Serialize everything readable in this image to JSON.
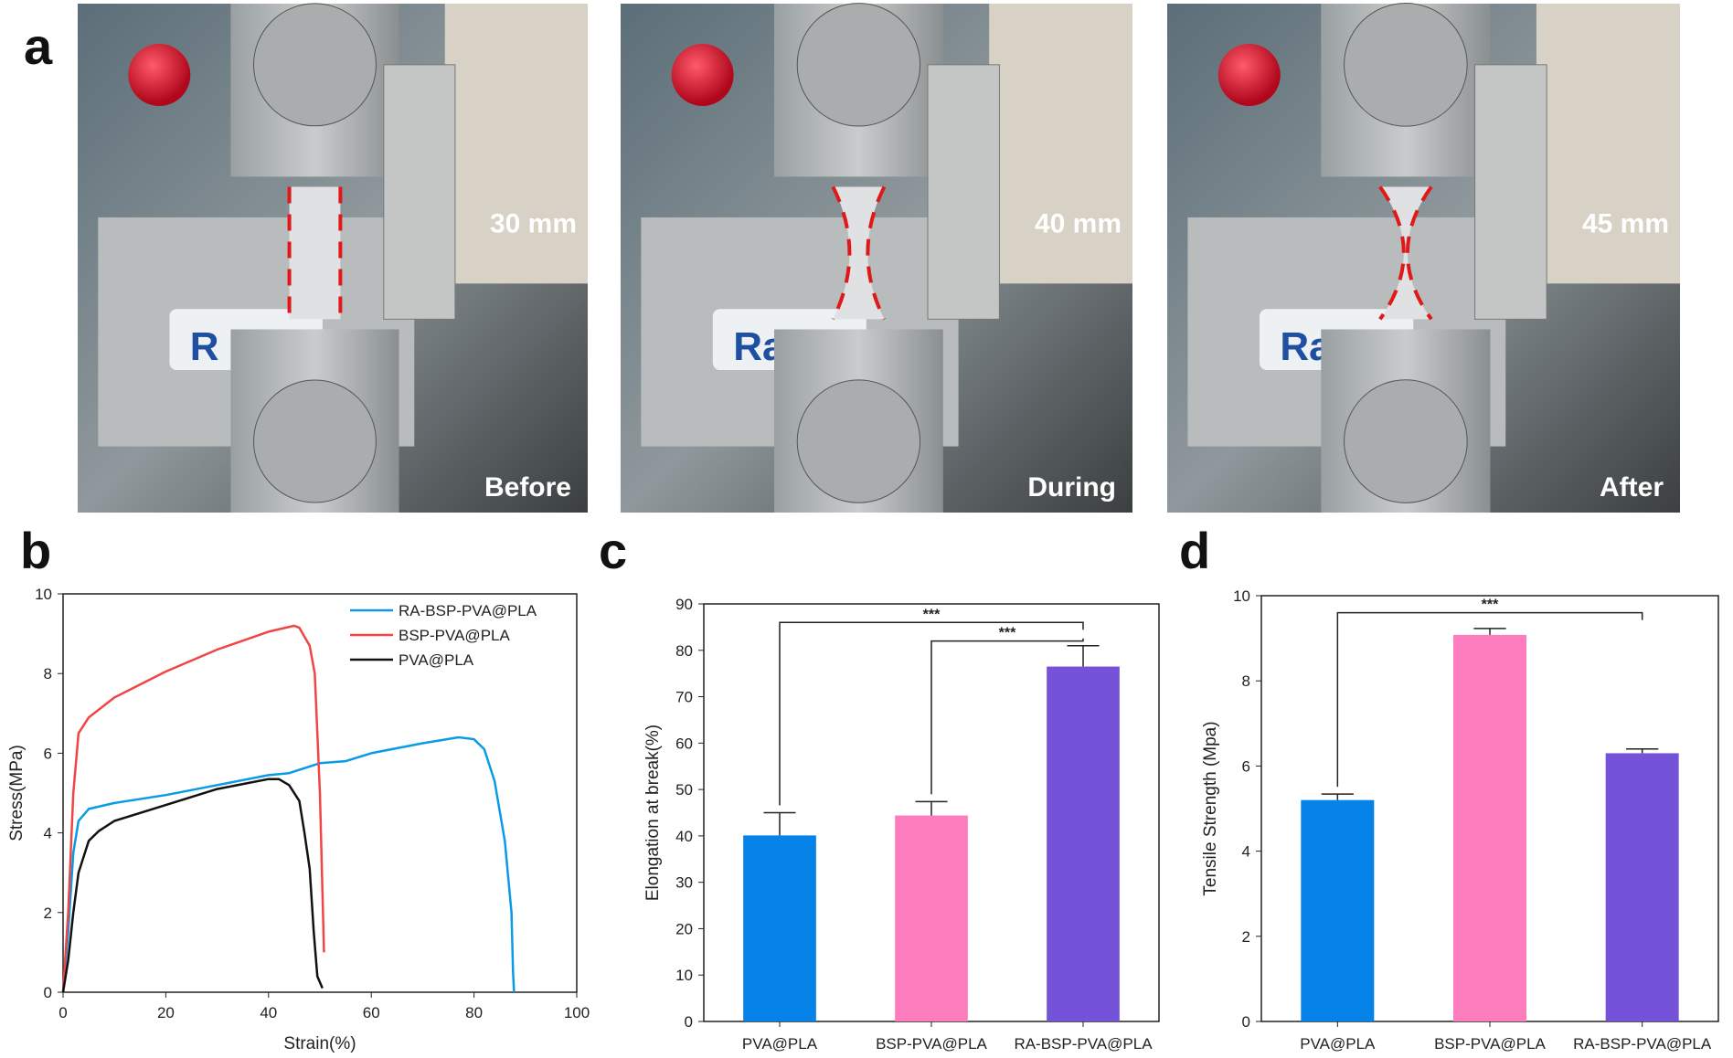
{
  "panel_labels": {
    "a": "a",
    "b": "b",
    "c": "c",
    "d": "d"
  },
  "photos": [
    {
      "length": "30 mm",
      "stage": "Before",
      "logo": "R"
    },
    {
      "length": "40 mm",
      "stage": "During",
      "logo": "Ra"
    },
    {
      "length": "45 mm",
      "stage": "After",
      "logo": "Ra"
    }
  ],
  "colors": {
    "blue": "#0a9be6",
    "red": "#f04545",
    "black": "#111111",
    "bar_blue": "#0583e8",
    "bar_pink": "#fd7cbd",
    "bar_purple": "#7453d8"
  },
  "chart_data": [
    {
      "type": "line",
      "xlabel": "Strain(%)",
      "ylabel": "Stress(MPa)",
      "xlim": [
        0,
        100
      ],
      "ylim": [
        0,
        10
      ],
      "xticks": [
        0,
        20,
        40,
        60,
        80,
        100
      ],
      "yticks": [
        0,
        2,
        4,
        6,
        8,
        10
      ],
      "grid": false,
      "legend": "top-right",
      "series": [
        {
          "name": "RA-BSP-PVA@PLA",
          "color": "#0a9be6",
          "x": [
            0,
            1,
            2,
            3,
            5,
            10,
            20,
            30,
            40,
            44,
            50,
            55,
            60,
            70,
            77,
            80,
            82,
            84,
            86,
            87.3,
            87.6,
            87.8
          ],
          "y": [
            0,
            1.5,
            3.5,
            4.3,
            4.6,
            4.75,
            4.95,
            5.2,
            5.45,
            5.5,
            5.75,
            5.8,
            6.0,
            6.25,
            6.4,
            6.35,
            6.1,
            5.3,
            3.8,
            2,
            0.5,
            0
          ]
        },
        {
          "name": "BSP-PVA@PLA",
          "color": "#f04545",
          "x": [
            0,
            1,
            2,
            3,
            5,
            10,
            20,
            30,
            40,
            45,
            46,
            48,
            49,
            50,
            50.5,
            50.8
          ],
          "y": [
            0,
            2,
            5,
            6.5,
            6.9,
            7.4,
            8.05,
            8.6,
            9.05,
            9.2,
            9.15,
            8.7,
            8.0,
            5,
            2.5,
            1
          ]
        },
        {
          "name": "PVA@PLA",
          "color": "#111111",
          "x": [
            0,
            1,
            2,
            3,
            5,
            7,
            10,
            20,
            30,
            40,
            42,
            44,
            46,
            47,
            48,
            48.8,
            49.5,
            50.5
          ],
          "y": [
            0,
            0.8,
            2,
            3,
            3.8,
            4.05,
            4.3,
            4.7,
            5.1,
            5.35,
            5.35,
            5.2,
            4.8,
            4,
            3.1,
            1.5,
            0.4,
            0.1
          ]
        }
      ]
    },
    {
      "type": "bar",
      "ylabel": "Elongation at break(%)",
      "ylim": [
        0,
        90
      ],
      "yticks": [
        0,
        10,
        20,
        30,
        40,
        50,
        60,
        70,
        80,
        90
      ],
      "categories": [
        "PVA@PLA",
        "BSP-PVA@PLA",
        "RA-BSP-PVA@PLA"
      ],
      "values": [
        40.1,
        44.4,
        76.5
      ],
      "errors": [
        4.9,
        3.0,
        4.5
      ],
      "bar_colors": [
        "#0583e8",
        "#fd7cbd",
        "#7453d8"
      ],
      "significance": [
        {
          "from": 0,
          "to": 2,
          "level": 86,
          "label": "***"
        },
        {
          "from": 1,
          "to": 2,
          "level": 82,
          "label": "***"
        }
      ]
    },
    {
      "type": "bar",
      "ylabel": "Tensile Strength (Mpa)",
      "ylim": [
        0,
        10
      ],
      "yticks": [
        0,
        2,
        4,
        6,
        8,
        10
      ],
      "categories": [
        "PVA@PLA",
        "BSP-PVA@PLA",
        "RA-BSP-PVA@PLA"
      ],
      "values": [
        5.2,
        9.08,
        6.3
      ],
      "errors": [
        0.14,
        0.15,
        0.1
      ],
      "bar_colors": [
        "#0583e8",
        "#fd7cbd",
        "#7453d8"
      ],
      "significance": [
        {
          "from": 0,
          "to": 2,
          "level": 9.6,
          "label": "***"
        }
      ]
    }
  ]
}
